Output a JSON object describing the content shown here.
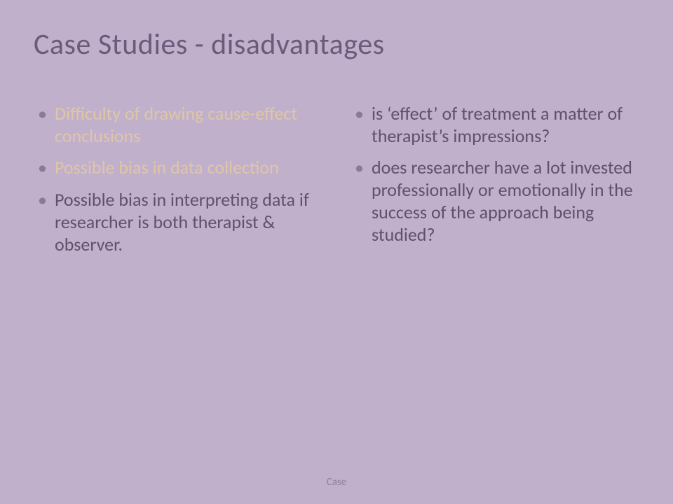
{
  "background_color": "#c0b0cc",
  "title": {
    "text": "Case Studies - disadvantages",
    "color": "#6b5b7b",
    "fontsize": 42
  },
  "bullet_color": "#8a7a98",
  "text_color_normal": "#5f5168",
  "text_color_emphasis": "#dfc6a5",
  "body_fontsize": 26,
  "columns": {
    "left": [
      {
        "text": "Difficulty of drawing cause-effect conclusions",
        "emphasis": true
      },
      {
        "text": "Possible bias in data collection",
        "emphasis": true
      },
      {
        "text": "Possible bias in interpreting data if researcher is both therapist & observer.",
        "emphasis": false
      }
    ],
    "right": [
      {
        "text": "is ‘effect’ of treatment a matter of therapist’s impressions?",
        "emphasis": false
      },
      {
        "text": "does researcher have a lot invested professionally or emotionally in the success of the approach being studied?",
        "emphasis": false
      }
    ]
  },
  "footer": {
    "text": "Case",
    "color": "#8f829a",
    "fontsize": 15
  }
}
